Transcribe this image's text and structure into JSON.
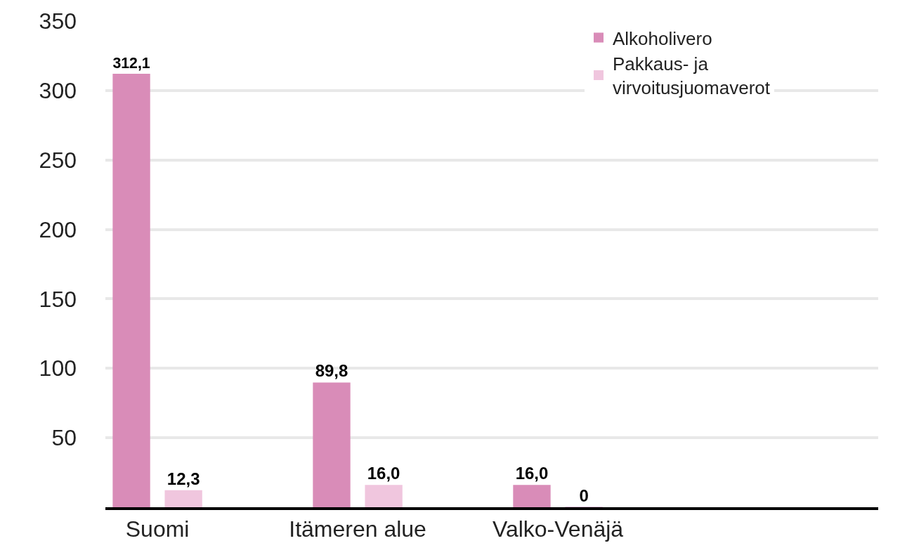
{
  "chart_data": {
    "type": "bar",
    "categories": [
      "Suomi",
      "Itämeren alue",
      "Valko-Venäjä"
    ],
    "series": [
      {
        "name": "Alkoholivero",
        "color": "#d98cb8",
        "values": [
          312.1,
          89.8,
          16.0
        ],
        "value_labels": [
          "312,1",
          "89,8",
          "16,0"
        ]
      },
      {
        "name": "Pakkaus- ja\nvirvoitusjuomaverot",
        "color": "#f0c6de",
        "values": [
          12.3,
          16.0,
          0
        ],
        "value_labels": [
          "12,3",
          "16,0",
          "0"
        ]
      }
    ],
    "ylim": [
      0,
      350
    ],
    "yticks": [
      50,
      100,
      150,
      200,
      250,
      300,
      350
    ],
    "grid": "y",
    "legend": "top right"
  }
}
